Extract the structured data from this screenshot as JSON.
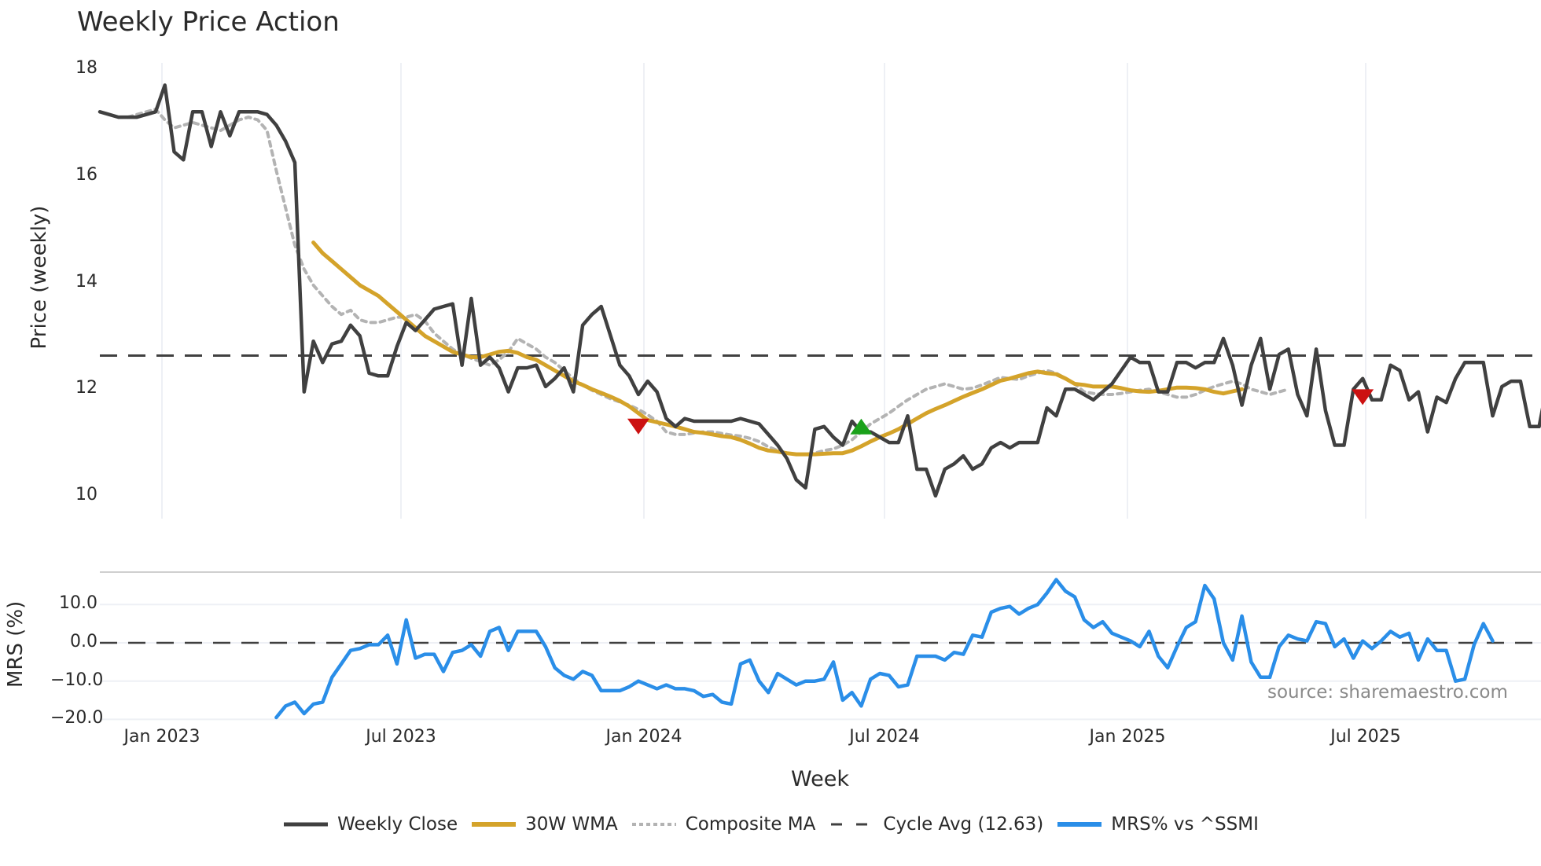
{
  "header": {
    "title": "Weekly Price Action"
  },
  "source_note": "source: sharemaestro.com",
  "colors": {
    "weekly_close": "#404040",
    "wma": "#d4a32a",
    "composite_ma": "#b3b3b3",
    "cycle_avg": "#404040",
    "mrs": "#2a8ee8",
    "sell_marker": "#cc1111",
    "buy_marker": "#1aa11a",
    "grid": "#eef0f5"
  },
  "legend": {
    "items": [
      {
        "label": "Weekly Close",
        "style": "solid-dark"
      },
      {
        "label": "30W WMA",
        "style": "solid-gold"
      },
      {
        "label": "Composite MA",
        "style": "dotted-gray"
      },
      {
        "label": "Cycle Avg (12.63)",
        "style": "dashed-dark"
      },
      {
        "label": "MRS% vs ^SSMI",
        "style": "solid-blue"
      }
    ]
  },
  "chart_data": [
    {
      "type": "line",
      "title": "Weekly Price Action",
      "xlabel": "Week",
      "ylabel": "Price (weekly)",
      "ylim": [
        9.6,
        18.1
      ],
      "yticks": [
        10,
        12,
        14,
        16,
        18
      ],
      "xticks": [
        "Jan 2023",
        "Jul 2023",
        "Jan 2024",
        "Jul 2024",
        "Jan 2025",
        "Jul 2025"
      ],
      "grid": true,
      "legend_position": "bottom",
      "x_start": "2022-11-28",
      "x_step": "1 week",
      "series": [
        {
          "name": "Weekly Close",
          "start_index": 0,
          "values": [
            17.2,
            17.15,
            17.1,
            17.1,
            17.1,
            17.15,
            17.2,
            17.7,
            16.45,
            16.3,
            17.2,
            17.2,
            16.55,
            17.2,
            16.75,
            17.2,
            17.2,
            17.2,
            17.15,
            16.95,
            16.65,
            16.25,
            11.95,
            12.9,
            12.5,
            12.85,
            12.9,
            13.2,
            13.0,
            12.3,
            12.25,
            12.25,
            12.8,
            13.25,
            13.1,
            13.3,
            13.5,
            13.55,
            13.6,
            12.45,
            13.7,
            12.45,
            12.6,
            12.4,
            11.95,
            12.4,
            12.4,
            12.45,
            12.05,
            12.2,
            12.4,
            11.95,
            13.2,
            13.4,
            13.55,
            13.0,
            12.45,
            12.25,
            11.9,
            12.15,
            11.95,
            11.45,
            11.3,
            11.45,
            11.4,
            11.4,
            11.4,
            11.4,
            11.4,
            11.45,
            11.4,
            11.35,
            11.15,
            10.95,
            10.7,
            10.3,
            10.15,
            11.25,
            11.3,
            11.1,
            10.95,
            11.4,
            11.2,
            11.2,
            11.1,
            11.0,
            11.0,
            11.5,
            10.5,
            10.5,
            10.0,
            10.5,
            10.6,
            10.75,
            10.5,
            10.6,
            10.9,
            11.0,
            10.9,
            11.0,
            11.0,
            11.0,
            11.65,
            11.5,
            12.0,
            12.0,
            11.9,
            11.8,
            11.95,
            12.1,
            12.35,
            12.6,
            12.5,
            12.5,
            11.95,
            11.95,
            12.5,
            12.5,
            12.4,
            12.5,
            12.5,
            12.95,
            12.45,
            11.7,
            12.45,
            12.95,
            12.0,
            12.65,
            12.75,
            11.9,
            11.5,
            12.75,
            11.6,
            10.95,
            10.95,
            12.0,
            12.2,
            11.8,
            11.8,
            12.45,
            12.35,
            11.8,
            11.95,
            11.2,
            11.85,
            11.75,
            12.2,
            12.5,
            12.5,
            12.5,
            11.5,
            12.05,
            12.15,
            12.15,
            11.3,
            11.3,
            12.2,
            12.6,
            12.5
          ]
        },
        {
          "name": "30W WMA",
          "start_index": 23,
          "values": [
            14.75,
            14.55,
            14.4,
            14.25,
            14.1,
            13.95,
            13.85,
            13.75,
            13.6,
            13.45,
            13.3,
            13.15,
            13.0,
            12.9,
            12.8,
            12.7,
            12.65,
            12.6,
            12.6,
            12.65,
            12.7,
            12.72,
            12.68,
            12.6,
            12.55,
            12.45,
            12.35,
            12.25,
            12.15,
            12.08,
            12.0,
            11.93,
            11.86,
            11.78,
            11.68,
            11.55,
            11.42,
            11.38,
            11.34,
            11.3,
            11.25,
            11.2,
            11.18,
            11.15,
            11.12,
            11.1,
            11.05,
            10.98,
            10.9,
            10.85,
            10.83,
            10.8,
            10.78,
            10.78,
            10.78,
            10.79,
            10.8,
            10.8,
            10.85,
            10.93,
            11.02,
            11.1,
            11.17,
            11.25,
            11.35,
            11.45,
            11.55,
            11.63,
            11.7,
            11.78,
            11.86,
            11.93,
            12.0,
            12.08,
            12.16,
            12.2,
            12.25,
            12.3,
            12.33,
            12.3,
            12.28,
            12.2,
            12.1,
            12.08,
            12.05,
            12.05,
            12.05,
            12.02,
            11.98,
            11.96,
            11.95,
            11.97,
            12.0,
            12.03,
            12.03,
            12.02,
            12.0,
            11.95,
            11.92,
            11.96,
            12.0
          ]
        },
        {
          "name": "Composite MA",
          "start_index": 2,
          "values": [
            17.1,
            17.1,
            17.15,
            17.2,
            17.25,
            17.05,
            16.9,
            16.95,
            17.0,
            16.95,
            16.9,
            16.85,
            16.95,
            17.05,
            17.1,
            17.05,
            16.85,
            16.1,
            15.4,
            14.7,
            14.25,
            13.95,
            13.75,
            13.55,
            13.4,
            13.48,
            13.3,
            13.25,
            13.25,
            13.3,
            13.35,
            13.35,
            13.4,
            13.28,
            13.05,
            12.9,
            12.75,
            12.65,
            12.58,
            12.52,
            12.45,
            12.55,
            12.7,
            12.95,
            12.85,
            12.75,
            12.6,
            12.5,
            12.35,
            12.2,
            12.08,
            11.98,
            11.9,
            11.82,
            11.76,
            11.7,
            11.62,
            11.52,
            11.4,
            11.2,
            11.15,
            11.15,
            11.18,
            11.2,
            11.2,
            11.17,
            11.14,
            11.12,
            11.08,
            11.02,
            10.92,
            10.85,
            10.8,
            10.78,
            10.78,
            10.8,
            10.85,
            10.88,
            10.95,
            11.05,
            11.2,
            11.35,
            11.45,
            11.55,
            11.68,
            11.8,
            11.9,
            12.0,
            12.05,
            12.1,
            12.05,
            12.0,
            12.02,
            12.08,
            12.15,
            12.22,
            12.2,
            12.18,
            12.25,
            12.3,
            12.35,
            12.3,
            12.2,
            12.1,
            11.95,
            11.92,
            11.9,
            11.9,
            11.92,
            11.95,
            11.98,
            12.0,
            11.95,
            11.9,
            11.85,
            11.85,
            11.9,
            11.98,
            12.05,
            12.1,
            12.15,
            12.1,
            12.0,
            11.95,
            11.9,
            11.95,
            12.0
          ]
        },
        {
          "name": "Cycle Avg",
          "constant": 12.63
        }
      ],
      "markers": [
        {
          "type": "sell",
          "shape": "triangle-down",
          "week_index": 58,
          "price": 11.3
        },
        {
          "type": "buy",
          "shape": "triangle-up",
          "week_index": 82,
          "price": 11.3
        },
        {
          "type": "sell",
          "shape": "triangle-down",
          "week_index": 136,
          "price": 11.85
        }
      ]
    },
    {
      "type": "line",
      "title": "",
      "xlabel": "Week",
      "ylabel": "MRS (%)",
      "ylim": [
        -21,
        17.5
      ],
      "yticks": [
        10.0,
        0.0,
        -10.0,
        -20.0
      ],
      "ytick_labels": [
        "10.0",
        "0.0",
        "−10.0",
        "−20.0"
      ],
      "grid": true,
      "reference_line": 0.0,
      "series": [
        {
          "name": "MRS% vs ^SSMI",
          "start_index": 19,
          "values": [
            -19.5,
            -16.5,
            -15.5,
            -18.5,
            -16,
            -15.5,
            -9,
            -5.5,
            -2,
            -1.5,
            -0.5,
            -0.5,
            2,
            -5.5,
            6,
            -4,
            -3,
            -3,
            -7.5,
            -2.5,
            -2,
            -0.5,
            -3.5,
            3,
            4,
            -2,
            3,
            3,
            3,
            -1,
            -6.5,
            -8.5,
            -9.5,
            -7.5,
            -8.5,
            -12.5,
            -12.5,
            -12.5,
            -11.5,
            -10,
            -11,
            -12,
            -11,
            -12,
            -12,
            -12.5,
            -14,
            -13.5,
            -15.5,
            -16,
            -5.5,
            -4.5,
            -10,
            -13,
            -8,
            -9.5,
            -11,
            -10,
            -10,
            -9.5,
            -5,
            -15,
            -13,
            -16.5,
            -9.5,
            -8,
            -8.5,
            -11.5,
            -11,
            -3.5,
            -3.5,
            -3.5,
            -4.5,
            -2.5,
            -3,
            2,
            1.5,
            8,
            9,
            9.5,
            7.5,
            9,
            10,
            13,
            16.5,
            13.5,
            12,
            6,
            4,
            5.5,
            2.5,
            1.5,
            0.5,
            -1,
            3,
            -3.5,
            -6.5,
            -1,
            4,
            5.5,
            15,
            11.5,
            0,
            -4.5,
            7,
            -5,
            -9,
            -9,
            -1,
            2,
            1,
            0.5,
            5.5,
            5,
            -1,
            1,
            -4,
            0.5,
            -1.5,
            0.5,
            3,
            1.5,
            2.5,
            -4.5,
            1,
            -2,
            -2,
            -10,
            -9.5,
            -0.5,
            5,
            0.5
          ]
        }
      ]
    }
  ]
}
